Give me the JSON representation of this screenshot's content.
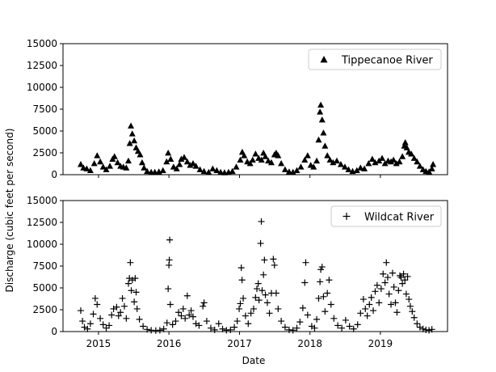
{
  "figure": {
    "shared_ylabel": "Discharge (cubic feet per second)",
    "xlabel": "Date"
  },
  "chart_data": [
    {
      "type": "scatter",
      "marker": "triangle",
      "series_name": "Tippecanoe River",
      "legend_position": "upper-right",
      "xlim": [
        "2014-07-01",
        "2019-12-15"
      ],
      "ylim": [
        0,
        15000
      ],
      "yticks": [
        0,
        2500,
        5000,
        7500,
        10000,
        12500,
        15000
      ],
      "xtick_labels": [
        "2015",
        "2016",
        "2017",
        "2018",
        "2019"
      ],
      "show_xtick_labels": false,
      "points": [
        [
          "2014-10-01",
          1200
        ],
        [
          "2014-10-15",
          800
        ],
        [
          "2014-11-01",
          700
        ],
        [
          "2014-11-20",
          500
        ],
        [
          "2014-12-10",
          1300
        ],
        [
          "2014-12-25",
          2200
        ],
        [
          "2015-01-10",
          1500
        ],
        [
          "2015-01-25",
          900
        ],
        [
          "2015-02-10",
          600
        ],
        [
          "2015-03-01",
          1000
        ],
        [
          "2015-03-15",
          1800
        ],
        [
          "2015-03-25",
          2100
        ],
        [
          "2015-04-10",
          1400
        ],
        [
          "2015-04-25",
          1000
        ],
        [
          "2015-05-10",
          900
        ],
        [
          "2015-05-25",
          800
        ],
        [
          "2015-06-05",
          1600
        ],
        [
          "2015-06-12",
          3600
        ],
        [
          "2015-06-18",
          5600
        ],
        [
          "2015-06-25",
          4700
        ],
        [
          "2015-07-05",
          3900
        ],
        [
          "2015-07-15",
          3100
        ],
        [
          "2015-07-25",
          2700
        ],
        [
          "2015-08-05",
          2300
        ],
        [
          "2015-08-15",
          1400
        ],
        [
          "2015-08-25",
          800
        ],
        [
          "2015-09-10",
          400
        ],
        [
          "2015-10-01",
          300
        ],
        [
          "2015-10-20",
          300
        ],
        [
          "2015-11-10",
          350
        ],
        [
          "2015-12-01",
          500
        ],
        [
          "2015-12-20",
          1500
        ],
        [
          "2015-12-28",
          2500
        ],
        [
          "2016-01-10",
          1800
        ],
        [
          "2016-01-25",
          900
        ],
        [
          "2016-02-10",
          700
        ],
        [
          "2016-02-25",
          1200
        ],
        [
          "2016-03-05",
          1800
        ],
        [
          "2016-03-20",
          2000
        ],
        [
          "2016-04-05",
          1500
        ],
        [
          "2016-04-20",
          1100
        ],
        [
          "2016-05-05",
          1300
        ],
        [
          "2016-05-20",
          1000
        ],
        [
          "2016-06-10",
          600
        ],
        [
          "2016-07-01",
          400
        ],
        [
          "2016-07-25",
          300
        ],
        [
          "2016-08-15",
          700
        ],
        [
          "2016-09-05",
          500
        ],
        [
          "2016-09-25",
          300
        ],
        [
          "2016-10-15",
          250
        ],
        [
          "2016-11-05",
          300
        ],
        [
          "2016-11-25",
          400
        ],
        [
          "2016-12-15",
          900
        ],
        [
          "2017-01-05",
          1700
        ],
        [
          "2017-01-15",
          2600
        ],
        [
          "2017-01-25",
          2200
        ],
        [
          "2017-02-10",
          1500
        ],
        [
          "2017-02-25",
          1300
        ],
        [
          "2017-03-10",
          1700
        ],
        [
          "2017-03-25",
          2400
        ],
        [
          "2017-04-10",
          1900
        ],
        [
          "2017-04-25",
          1700
        ],
        [
          "2017-05-05",
          2500
        ],
        [
          "2017-05-15",
          2100
        ],
        [
          "2017-05-30",
          1600
        ],
        [
          "2017-06-15",
          1400
        ],
        [
          "2017-07-01",
          2300
        ],
        [
          "2017-07-10",
          2500
        ],
        [
          "2017-07-20",
          2200
        ],
        [
          "2017-08-05",
          1300
        ],
        [
          "2017-08-25",
          600
        ],
        [
          "2017-09-15",
          350
        ],
        [
          "2017-10-05",
          300
        ],
        [
          "2017-10-25",
          500
        ],
        [
          "2017-11-15",
          900
        ],
        [
          "2017-12-05",
          1700
        ],
        [
          "2017-12-20",
          2200
        ],
        [
          "2018-01-05",
          1100
        ],
        [
          "2018-01-20",
          900
        ],
        [
          "2018-02-05",
          1600
        ],
        [
          "2018-02-15",
          4000
        ],
        [
          "2018-02-22",
          7200
        ],
        [
          "2018-02-26",
          8000
        ],
        [
          "2018-03-05",
          6300
        ],
        [
          "2018-03-12",
          4800
        ],
        [
          "2018-03-20",
          3300
        ],
        [
          "2018-04-01",
          2200
        ],
        [
          "2018-04-15",
          1700
        ],
        [
          "2018-05-01",
          1400
        ],
        [
          "2018-05-20",
          1600
        ],
        [
          "2018-06-10",
          1200
        ],
        [
          "2018-07-01",
          900
        ],
        [
          "2018-07-20",
          600
        ],
        [
          "2018-08-10",
          400
        ],
        [
          "2018-09-01",
          500
        ],
        [
          "2018-09-20",
          800
        ],
        [
          "2018-10-10",
          700
        ],
        [
          "2018-11-01",
          1300
        ],
        [
          "2018-11-20",
          1800
        ],
        [
          "2018-12-05",
          1400
        ],
        [
          "2018-12-25",
          1600
        ],
        [
          "2019-01-10",
          1900
        ],
        [
          "2019-01-25",
          1300
        ],
        [
          "2019-02-10",
          1600
        ],
        [
          "2019-02-25",
          1500
        ],
        [
          "2019-03-10",
          1700
        ],
        [
          "2019-03-25",
          1300
        ],
        [
          "2019-04-10",
          1500
        ],
        [
          "2019-04-25",
          2100
        ],
        [
          "2019-05-05",
          3300
        ],
        [
          "2019-05-10",
          3700
        ],
        [
          "2019-05-18",
          3100
        ],
        [
          "2019-05-28",
          2600
        ],
        [
          "2019-06-10",
          2400
        ],
        [
          "2019-06-25",
          1900
        ],
        [
          "2019-07-10",
          1500
        ],
        [
          "2019-07-25",
          1000
        ],
        [
          "2019-08-10",
          600
        ],
        [
          "2019-08-25",
          400
        ],
        [
          "2019-09-10",
          350
        ],
        [
          "2019-09-25",
          700
        ],
        [
          "2019-10-01",
          1200
        ]
      ]
    },
    {
      "type": "scatter",
      "marker": "plus",
      "series_name": "Wildcat River",
      "legend_position": "upper-right",
      "xlim": [
        "2014-07-01",
        "2019-12-15"
      ],
      "ylim": [
        0,
        15000
      ],
      "yticks": [
        0,
        2500,
        5000,
        7500,
        10000,
        12500,
        15000
      ],
      "xtick_labels": [
        "2015",
        "2016",
        "2017",
        "2018",
        "2019"
      ],
      "show_xtick_labels": true,
      "points": [
        [
          "2014-10-01",
          2400
        ],
        [
          "2014-10-10",
          1200
        ],
        [
          "2014-10-20",
          500
        ],
        [
          "2014-11-05",
          300
        ],
        [
          "2014-11-20",
          900
        ],
        [
          "2014-12-05",
          2000
        ],
        [
          "2014-12-15",
          3800
        ],
        [
          "2014-12-25",
          3100
        ],
        [
          "2015-01-10",
          1500
        ],
        [
          "2015-01-25",
          800
        ],
        [
          "2015-02-10",
          400
        ],
        [
          "2015-02-25",
          700
        ],
        [
          "2015-03-10",
          1900
        ],
        [
          "2015-03-20",
          2600
        ],
        [
          "2015-04-05",
          2800
        ],
        [
          "2015-04-15",
          1800
        ],
        [
          "2015-04-25",
          2200
        ],
        [
          "2015-05-05",
          3800
        ],
        [
          "2015-05-15",
          2900
        ],
        [
          "2015-05-25",
          1500
        ],
        [
          "2015-06-05",
          5500
        ],
        [
          "2015-06-10",
          6100
        ],
        [
          "2015-06-15",
          7900
        ],
        [
          "2015-06-20",
          4700
        ],
        [
          "2015-06-25",
          5900
        ],
        [
          "2015-07-05",
          3400
        ],
        [
          "2015-07-10",
          6100
        ],
        [
          "2015-07-15",
          4500
        ],
        [
          "2015-07-20",
          2600
        ],
        [
          "2015-08-01",
          1400
        ],
        [
          "2015-08-20",
          600
        ],
        [
          "2015-09-10",
          250
        ],
        [
          "2015-10-01",
          150
        ],
        [
          "2015-10-25",
          120
        ],
        [
          "2015-11-15",
          150
        ],
        [
          "2015-12-05",
          300
        ],
        [
          "2015-12-22",
          1000
        ],
        [
          "2015-12-28",
          4900
        ],
        [
          "2016-01-01",
          7600
        ],
        [
          "2016-01-03",
          8200
        ],
        [
          "2016-01-05",
          10500
        ],
        [
          "2016-01-08",
          3100
        ],
        [
          "2016-01-20",
          800
        ],
        [
          "2016-02-05",
          1200
        ],
        [
          "2016-02-20",
          2200
        ],
        [
          "2016-03-05",
          1800
        ],
        [
          "2016-03-15",
          2600
        ],
        [
          "2016-03-25",
          1500
        ],
        [
          "2016-04-05",
          4100
        ],
        [
          "2016-04-15",
          1900
        ],
        [
          "2016-04-25",
          2400
        ],
        [
          "2016-05-05",
          1700
        ],
        [
          "2016-05-20",
          900
        ],
        [
          "2016-06-05",
          700
        ],
        [
          "2016-06-25",
          2900
        ],
        [
          "2016-07-01",
          3300
        ],
        [
          "2016-07-15",
          1200
        ],
        [
          "2016-08-05",
          400
        ],
        [
          "2016-08-25",
          200
        ],
        [
          "2016-09-15",
          900
        ],
        [
          "2016-10-05",
          300
        ],
        [
          "2016-10-25",
          150
        ],
        [
          "2016-11-15",
          200
        ],
        [
          "2016-12-05",
          500
        ],
        [
          "2016-12-20",
          1200
        ],
        [
          "2016-12-30",
          2600
        ],
        [
          "2017-01-05",
          3200
        ],
        [
          "2017-01-10",
          7300
        ],
        [
          "2017-01-14",
          5900
        ],
        [
          "2017-01-20",
          3800
        ],
        [
          "2017-02-01",
          1800
        ],
        [
          "2017-02-15",
          900
        ],
        [
          "2017-03-01",
          2100
        ],
        [
          "2017-03-15",
          2600
        ],
        [
          "2017-03-25",
          3900
        ],
        [
          "2017-04-01",
          4900
        ],
        [
          "2017-04-08",
          5500
        ],
        [
          "2017-04-12",
          3600
        ],
        [
          "2017-04-20",
          10100
        ],
        [
          "2017-04-24",
          12600
        ],
        [
          "2017-04-28",
          4700
        ],
        [
          "2017-05-05",
          6500
        ],
        [
          "2017-05-10",
          8200
        ],
        [
          "2017-05-15",
          4200
        ],
        [
          "2017-05-25",
          3300
        ],
        [
          "2017-06-05",
          2100
        ],
        [
          "2017-06-15",
          4400
        ],
        [
          "2017-06-25",
          8300
        ],
        [
          "2017-07-01",
          7600
        ],
        [
          "2017-07-10",
          4400
        ],
        [
          "2017-07-20",
          2600
        ],
        [
          "2017-08-05",
          1200
        ],
        [
          "2017-08-25",
          500
        ],
        [
          "2017-09-15",
          200
        ],
        [
          "2017-10-05",
          150
        ],
        [
          "2017-10-25",
          400
        ],
        [
          "2017-11-10",
          1100
        ],
        [
          "2017-11-25",
          2700
        ],
        [
          "2017-12-05",
          5600
        ],
        [
          "2017-12-10",
          7900
        ],
        [
          "2017-12-20",
          1900
        ],
        [
          "2018-01-10",
          600
        ],
        [
          "2018-01-25",
          400
        ],
        [
          "2018-02-05",
          1400
        ],
        [
          "2018-02-15",
          3800
        ],
        [
          "2018-02-22",
          5700
        ],
        [
          "2018-02-26",
          7100
        ],
        [
          "2018-03-05",
          7400
        ],
        [
          "2018-03-12",
          4000
        ],
        [
          "2018-03-20",
          2300
        ],
        [
          "2018-04-01",
          4400
        ],
        [
          "2018-04-10",
          5900
        ],
        [
          "2018-04-20",
          3100
        ],
        [
          "2018-05-05",
          1500
        ],
        [
          "2018-05-25",
          700
        ],
        [
          "2018-06-15",
          400
        ],
        [
          "2018-07-05",
          1300
        ],
        [
          "2018-07-25",
          600
        ],
        [
          "2018-08-15",
          300
        ],
        [
          "2018-09-05",
          800
        ],
        [
          "2018-09-20",
          2100
        ],
        [
          "2018-10-05",
          3700
        ],
        [
          "2018-10-15",
          2600
        ],
        [
          "2018-10-25",
          1800
        ],
        [
          "2018-11-05",
          3100
        ],
        [
          "2018-11-15",
          3900
        ],
        [
          "2018-11-25",
          2400
        ],
        [
          "2018-12-05",
          4600
        ],
        [
          "2018-12-15",
          5300
        ],
        [
          "2018-12-25",
          3300
        ],
        [
          "2019-01-05",
          4900
        ],
        [
          "2019-01-15",
          6600
        ],
        [
          "2019-01-25",
          5600
        ],
        [
          "2019-02-01",
          7900
        ],
        [
          "2019-02-08",
          6200
        ],
        [
          "2019-02-15",
          4300
        ],
        [
          "2019-02-25",
          3100
        ],
        [
          "2019-03-05",
          6700
        ],
        [
          "2019-03-12",
          5100
        ],
        [
          "2019-03-20",
          3300
        ],
        [
          "2019-03-28",
          2200
        ],
        [
          "2019-04-05",
          4700
        ],
        [
          "2019-04-12",
          6400
        ],
        [
          "2019-04-18",
          6200
        ],
        [
          "2019-04-25",
          5500
        ],
        [
          "2019-05-01",
          6600
        ],
        [
          "2019-05-08",
          5900
        ],
        [
          "2019-05-15",
          4300
        ],
        [
          "2019-05-22",
          6300
        ],
        [
          "2019-05-29",
          3700
        ],
        [
          "2019-06-05",
          2900
        ],
        [
          "2019-06-15",
          2300
        ],
        [
          "2019-06-25",
          1600
        ],
        [
          "2019-07-10",
          900
        ],
        [
          "2019-07-25",
          500
        ],
        [
          "2019-08-10",
          300
        ],
        [
          "2019-08-25",
          200
        ],
        [
          "2019-09-10",
          150
        ],
        [
          "2019-09-25",
          250
        ]
      ]
    }
  ]
}
